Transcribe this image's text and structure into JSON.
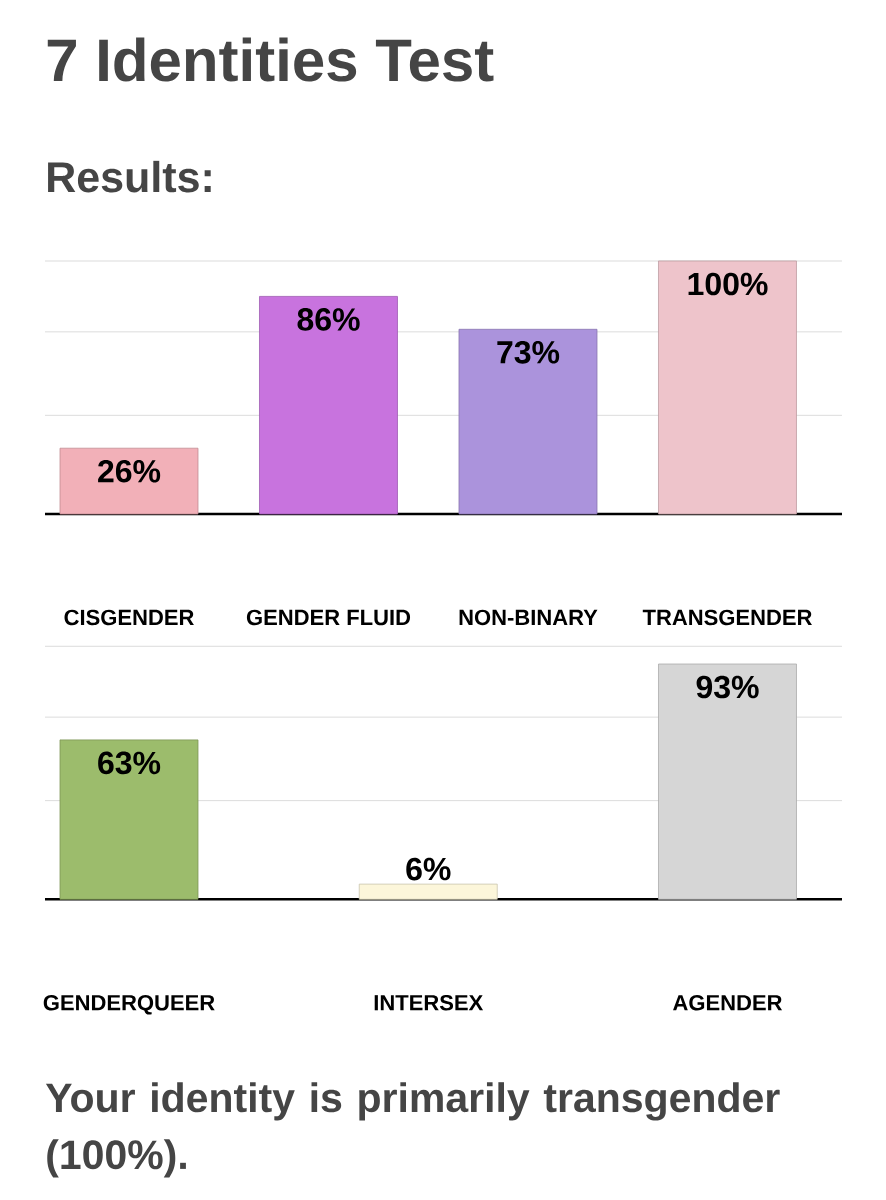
{
  "chart_data": [
    {
      "type": "bar",
      "title": "7 Identities Test",
      "subtitle": "Results:",
      "categories": [
        "CISGENDER",
        "GENDER FLUID",
        "NON-BINARY",
        "TRANSGENDER"
      ],
      "values": [
        26,
        86,
        73,
        100
      ],
      "colors": [
        "#f2b0b8",
        "#c873de",
        "#ab93dc",
        "#eec4cb"
      ],
      "value_labels": [
        "26%",
        "86%",
        "73%",
        "100%"
      ],
      "ylim": [
        0,
        100
      ],
      "yticks": [
        {
          "value": 39,
          "label": null
        },
        {
          "value": 72,
          "label": null
        },
        {
          "value": 100,
          "label": null
        }
      ],
      "grid": "y",
      "tick_labels": "x"
    },
    {
      "type": "bar",
      "categories": [
        "GENDERQUEER",
        "INTERSEX",
        "AGENDER"
      ],
      "values": [
        63,
        6,
        93
      ],
      "colors": [
        "#9cbc6c",
        "#fcf6da",
        "#d6d6d6"
      ],
      "value_labels": [
        "63%",
        "6%",
        "93%"
      ],
      "ylim": [
        0,
        100
      ],
      "yticks": [
        {
          "value": 39,
          "label": null
        },
        {
          "value": 72,
          "label": null
        },
        {
          "value": 100,
          "label": null
        }
      ],
      "grid": "y",
      "tick_labels": "x",
      "annotations": [
        "Your identity is primarily transgender (100%)."
      ]
    }
  ]
}
